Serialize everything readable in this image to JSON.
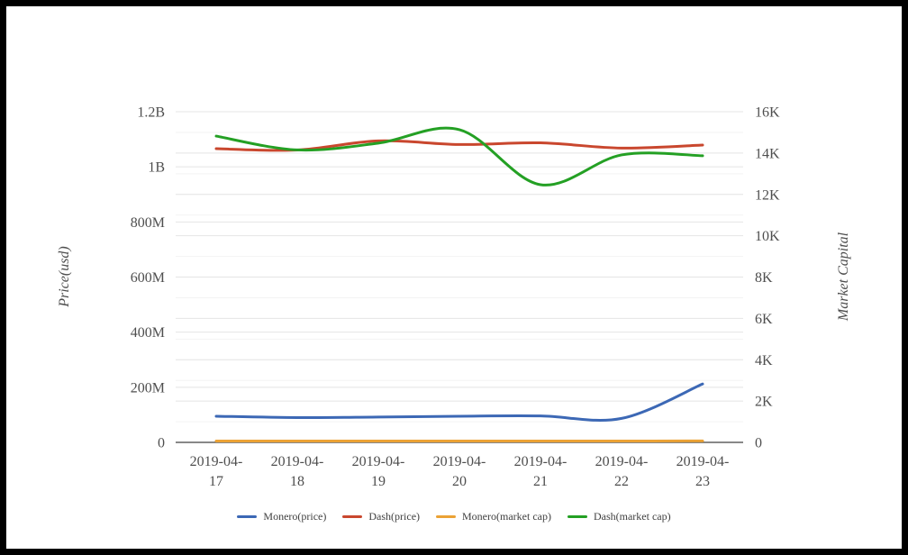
{
  "frame": {
    "background": "#ffffff",
    "border_color": "#000000"
  },
  "chart_data": {
    "type": "line",
    "smooth": true,
    "grid": true,
    "legend_position": "bottom",
    "categories": [
      "2019-04-17",
      "2019-04-18",
      "2019-04-19",
      "2019-04-20",
      "2019-04-21",
      "2019-04-22",
      "2019-04-23"
    ],
    "left_axis": {
      "title": "Price(usd)",
      "min": 0,
      "max": 1200000000,
      "ticks": [
        {
          "label": "0",
          "value": 0
        },
        {
          "label": "200M",
          "value": 200000000
        },
        {
          "label": "400M",
          "value": 400000000
        },
        {
          "label": "600M",
          "value": 600000000
        },
        {
          "label": "800M",
          "value": 800000000
        },
        {
          "label": "1B",
          "value": 1000000000
        },
        {
          "label": "1.2B",
          "value": 1200000000
        }
      ]
    },
    "right_axis": {
      "title": "Market Capital",
      "min": 0,
      "max": 16000,
      "minor_step": 1000,
      "ticks": [
        {
          "label": "0",
          "value": 0
        },
        {
          "label": "2K",
          "value": 2000
        },
        {
          "label": "4K",
          "value": 4000
        },
        {
          "label": "6K",
          "value": 6000
        },
        {
          "label": "8K",
          "value": 8000
        },
        {
          "label": "10K",
          "value": 10000
        },
        {
          "label": "12K",
          "value": 12000
        },
        {
          "label": "14K",
          "value": 14000
        },
        {
          "label": "16K",
          "value": 16000
        }
      ]
    },
    "series": [
      {
        "name": "Monero(price)",
        "axis": "left",
        "color": "#3c68b5",
        "values": [
          95000000,
          90000000,
          92000000,
          95000000,
          96000000,
          87000000,
          212000000
        ]
      },
      {
        "name": "Dash(price)",
        "axis": "left",
        "color": "#c9472e",
        "values": [
          1066000000,
          1061000000,
          1094000000,
          1081000000,
          1087000000,
          1068000000,
          1079000000
        ]
      },
      {
        "name": "Monero(market cap)",
        "axis": "right",
        "color": "#eba235",
        "values": [
          66,
          65,
          66,
          67,
          66,
          66,
          69
        ]
      },
      {
        "name": "Dash(market cap)",
        "axis": "right",
        "color": "#24a024",
        "values": [
          14820,
          14150,
          14480,
          15130,
          12470,
          13910,
          13870
        ]
      }
    ],
    "colors": {
      "grid_major": "#e4e4e4",
      "grid_minor": "#f3f3f3",
      "baseline": "#424242",
      "tick_text": "#4e4e4e",
      "legend_text": "#3f3f3f"
    }
  }
}
